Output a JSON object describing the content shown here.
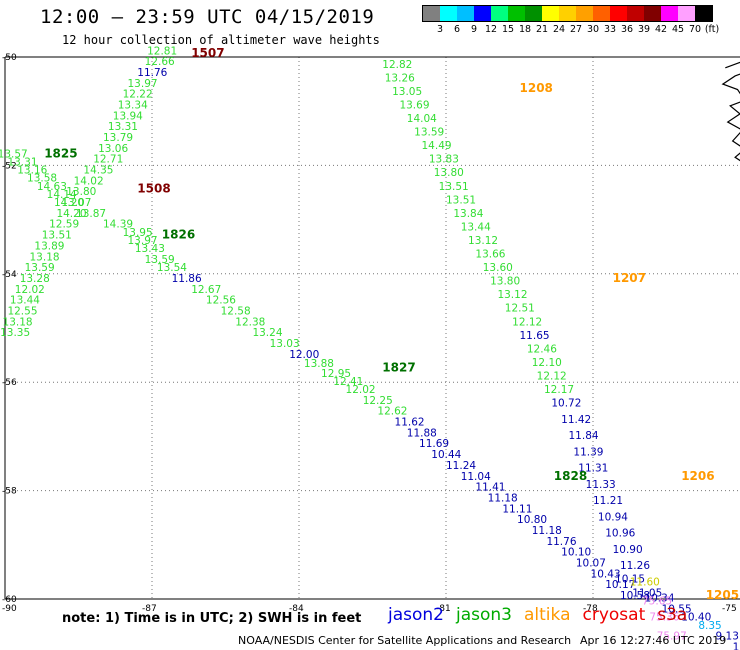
{
  "title": "12:00 – 23:59 UTC 04/15/2019",
  "subtitle": "12 hour collection of altimeter wave heights",
  "legend": {
    "unit": "(ft)",
    "colors": [
      "#808080",
      "#00ffff",
      "#00bfff",
      "#0000ff",
      "#00ff80",
      "#00c000",
      "#009000",
      "#ffff00",
      "#ffd000",
      "#ffa000",
      "#ff6000",
      "#ff0000",
      "#c00000",
      "#800000",
      "#ff00ff",
      "#ffa0ff",
      "#000000"
    ],
    "labels": [
      "3",
      "6",
      "9",
      "12",
      "15",
      "18",
      "21",
      "24",
      "27",
      "30",
      "33",
      "36",
      "39",
      "42",
      "45",
      "70"
    ]
  },
  "axes": {
    "lat_labels": [
      "-50",
      "-52",
      "-54",
      "-56",
      "-58",
      "-60"
    ],
    "lon_labels": [
      "-90",
      "-87",
      "-84",
      "-81",
      "-78",
      "-75"
    ]
  },
  "pass_ids": [
    {
      "id": "1507",
      "color": "#800000",
      "lon": -86.2,
      "lat": -50.0
    },
    {
      "id": "1208",
      "color": "#ff9900",
      "lon": -79.5,
      "lat": -50.65
    },
    {
      "id": "1825",
      "color": "#007000",
      "lon": -89.2,
      "lat": -51.85
    },
    {
      "id": "1508",
      "color": "#800000",
      "lon": -87.3,
      "lat": -52.5
    },
    {
      "id": "1826",
      "color": "#007000",
      "lon": -86.8,
      "lat": -53.35
    },
    {
      "id": "1207",
      "color": "#ff9900",
      "lon": -77.6,
      "lat": -54.15
    },
    {
      "id": "1827",
      "color": "#007000",
      "lon": -82.3,
      "lat": -55.8
    },
    {
      "id": "1828",
      "color": "#007000",
      "lon": -78.8,
      "lat": -57.8
    },
    {
      "id": "1206",
      "color": "#ff9900",
      "lon": -76.2,
      "lat": -57.8
    },
    {
      "id": "1205",
      "color": "#ff9900",
      "lon": -75.7,
      "lat": -60.0
    }
  ],
  "values": [
    {
      "t": "12.81",
      "c": "#33dd33",
      "lon": -87.1,
      "lat": -49.95
    },
    {
      "t": "12.66",
      "c": "#33dd33",
      "lon": -87.15,
      "lat": -50.15
    },
    {
      "t": "11.76",
      "c": "#0000aa",
      "lon": -87.3,
      "lat": -50.35
    },
    {
      "t": "13.97",
      "c": "#33dd33",
      "lon": -87.5,
      "lat": -50.55
    },
    {
      "t": "12.22",
      "c": "#33dd33",
      "lon": -87.6,
      "lat": -50.75
    },
    {
      "t": "13.34",
      "c": "#33dd33",
      "lon": -87.7,
      "lat": -50.95
    },
    {
      "t": "13.94",
      "c": "#33dd33",
      "lon": -87.8,
      "lat": -51.15
    },
    {
      "t": "13.31",
      "c": "#33dd33",
      "lon": -87.9,
      "lat": -51.35
    },
    {
      "t": "13.79",
      "c": "#33dd33",
      "lon": -88.0,
      "lat": -51.55
    },
    {
      "t": "13.06",
      "c": "#33dd33",
      "lon": -88.1,
      "lat": -51.75
    },
    {
      "t": "12.71",
      "c": "#33dd33",
      "lon": -88.2,
      "lat": -51.95
    },
    {
      "t": "14.35",
      "c": "#33dd33",
      "lon": -88.4,
      "lat": -52.15
    },
    {
      "t": "14.02",
      "c": "#33dd33",
      "lon": -88.6,
      "lat": -52.35
    },
    {
      "t": "13.80",
      "c": "#33dd33",
      "lon": -88.75,
      "lat": -52.55
    },
    {
      "t": "13.07",
      "c": "#33dd33",
      "lon": -88.85,
      "lat": -52.75
    },
    {
      "t": "14.20",
      "c": "#33dd33",
      "lon": -88.95,
      "lat": -52.95
    },
    {
      "t": "12.59",
      "c": "#33dd33",
      "lon": -89.1,
      "lat": -53.15
    },
    {
      "t": "13.51",
      "c": "#33dd33",
      "lon": -89.25,
      "lat": -53.35
    },
    {
      "t": "13.89",
      "c": "#33dd33",
      "lon": -89.4,
      "lat": -53.55
    },
    {
      "t": "13.18",
      "c": "#33dd33",
      "lon": -89.5,
      "lat": -53.75
    },
    {
      "t": "13.59",
      "c": "#33dd33",
      "lon": -89.6,
      "lat": -53.95
    },
    {
      "t": "13.28",
      "c": "#33dd33",
      "lon": -89.7,
      "lat": -54.15
    },
    {
      "t": "12.02",
      "c": "#33dd33",
      "lon": -89.8,
      "lat": -54.35
    },
    {
      "t": "13.44",
      "c": "#33dd33",
      "lon": -89.9,
      "lat": -54.55
    },
    {
      "t": "12.55",
      "c": "#33dd33",
      "lon": -89.95,
      "lat": -54.75
    },
    {
      "t": "13.18",
      "c": "#33dd33",
      "lon": -90.05,
      "lat": -54.95
    },
    {
      "t": "13.35",
      "c": "#33dd33",
      "lon": -90.1,
      "lat": -55.15
    },
    {
      "t": "13.57",
      "c": "#33dd33",
      "lon": -90.15,
      "lat": -51.85
    },
    {
      "t": "13.31",
      "c": "#33dd33",
      "lon": -89.95,
      "lat": -52.0
    },
    {
      "t": "13.16",
      "c": "#33dd33",
      "lon": -89.75,
      "lat": -52.15
    },
    {
      "t": "13.58",
      "c": "#33dd33",
      "lon": -89.55,
      "lat": -52.3
    },
    {
      "t": "14.63",
      "c": "#33dd33",
      "lon": -89.35,
      "lat": -52.45
    },
    {
      "t": "14.14",
      "c": "#33dd33",
      "lon": -89.15,
      "lat": -52.6
    },
    {
      "t": "14.20",
      "c": "#33dd33",
      "lon": -89.0,
      "lat": -52.75
    },
    {
      "t": "13.87",
      "c": "#33dd33",
      "lon": -88.55,
      "lat": -52.95
    },
    {
      "t": "14.39",
      "c": "#33dd33",
      "lon": -88.0,
      "lat": -53.15
    },
    {
      "t": "13.95",
      "c": "#33dd33",
      "lon": -87.6,
      "lat": -53.3
    },
    {
      "t": "13.97",
      "c": "#33dd33",
      "lon": -87.5,
      "lat": -53.45
    },
    {
      "t": "13.43",
      "c": "#33dd33",
      "lon": -87.35,
      "lat": -53.6
    },
    {
      "t": "13.59",
      "c": "#33dd33",
      "lon": -87.15,
      "lat": -53.8
    },
    {
      "t": "13.54",
      "c": "#33dd33",
      "lon": -86.9,
      "lat": -53.95
    },
    {
      "t": "11.86",
      "c": "#0000aa",
      "lon": -86.6,
      "lat": -54.15
    },
    {
      "t": "12.67",
      "c": "#33dd33",
      "lon": -86.2,
      "lat": -54.35
    },
    {
      "t": "12.56",
      "c": "#33dd33",
      "lon": -85.9,
      "lat": -54.55
    },
    {
      "t": "12.58",
      "c": "#33dd33",
      "lon": -85.6,
      "lat": -54.75
    },
    {
      "t": "12.38",
      "c": "#33dd33",
      "lon": -85.3,
      "lat": -54.95
    },
    {
      "t": "13.24",
      "c": "#33dd33",
      "lon": -84.95,
      "lat": -55.15
    },
    {
      "t": "13.03",
      "c": "#33dd33",
      "lon": -84.6,
      "lat": -55.35
    },
    {
      "t": "12.00",
      "c": "#0000aa",
      "lon": -84.2,
      "lat": -55.55
    },
    {
      "t": "13.88",
      "c": "#33dd33",
      "lon": -83.9,
      "lat": -55.72
    },
    {
      "t": "12.95",
      "c": "#33dd33",
      "lon": -83.55,
      "lat": -55.9
    },
    {
      "t": "12.41",
      "c": "#33dd33",
      "lon": -83.3,
      "lat": -56.05
    },
    {
      "t": "12.02",
      "c": "#33dd33",
      "lon": -83.05,
      "lat": -56.2
    },
    {
      "t": "12.25",
      "c": "#33dd33",
      "lon": -82.7,
      "lat": -56.4
    },
    {
      "t": "12.62",
      "c": "#33dd33",
      "lon": -82.4,
      "lat": -56.6
    },
    {
      "t": "11.62",
      "c": "#0000aa",
      "lon": -82.05,
      "lat": -56.8
    },
    {
      "t": "11.88",
      "c": "#0000aa",
      "lon": -81.8,
      "lat": -57.0
    },
    {
      "t": "11.69",
      "c": "#0000aa",
      "lon": -81.55,
      "lat": -57.2
    },
    {
      "t": "10.44",
      "c": "#0000aa",
      "lon": -81.3,
      "lat": -57.4
    },
    {
      "t": "11.24",
      "c": "#0000aa",
      "lon": -81.0,
      "lat": -57.6
    },
    {
      "t": "11.04",
      "c": "#0000aa",
      "lon": -80.7,
      "lat": -57.8
    },
    {
      "t": "11.41",
      "c": "#0000aa",
      "lon": -80.4,
      "lat": -58.0
    },
    {
      "t": "11.18",
      "c": "#0000aa",
      "lon": -80.15,
      "lat": -58.2
    },
    {
      "t": "11.11",
      "c": "#0000aa",
      "lon": -79.85,
      "lat": -58.4
    },
    {
      "t": "10.80",
      "c": "#0000aa",
      "lon": -79.55,
      "lat": -58.6
    },
    {
      "t": "11.18",
      "c": "#0000aa",
      "lon": -79.25,
      "lat": -58.8
    },
    {
      "t": "11.76",
      "c": "#0000aa",
      "lon": -78.95,
      "lat": -59.0
    },
    {
      "t": "10.10",
      "c": "#0000aa",
      "lon": -78.65,
      "lat": -59.2
    },
    {
      "t": "10.07",
      "c": "#0000aa",
      "lon": -78.35,
      "lat": -59.4
    },
    {
      "t": "10.43",
      "c": "#0000aa",
      "lon": -78.05,
      "lat": -59.6
    },
    {
      "t": "10.17",
      "c": "#0000aa",
      "lon": -77.75,
      "lat": -59.8
    },
    {
      "t": "10.58",
      "c": "#0000aa",
      "lon": -77.45,
      "lat": -60.0
    },
    {
      "t": "12.82",
      "c": "#33dd33",
      "lon": -82.3,
      "lat": -50.2
    },
    {
      "t": "13.26",
      "c": "#33dd33",
      "lon": -82.25,
      "lat": -50.45
    },
    {
      "t": "13.05",
      "c": "#33dd33",
      "lon": -82.1,
      "lat": -50.7
    },
    {
      "t": "13.69",
      "c": "#33dd33",
      "lon": -81.95,
      "lat": -50.95
    },
    {
      "t": "14.04",
      "c": "#33dd33",
      "lon": -81.8,
      "lat": -51.2
    },
    {
      "t": "13.59",
      "c": "#33dd33",
      "lon": -81.65,
      "lat": -51.45
    },
    {
      "t": "14.49",
      "c": "#33dd33",
      "lon": -81.5,
      "lat": -51.7
    },
    {
      "t": "13.83",
      "c": "#33dd33",
      "lon": -81.35,
      "lat": -51.95
    },
    {
      "t": "13.80",
      "c": "#33dd33",
      "lon": -81.25,
      "lat": -52.2
    },
    {
      "t": "13.51",
      "c": "#33dd33",
      "lon": -81.15,
      "lat": -52.45
    },
    {
      "t": "13.51",
      "c": "#33dd33",
      "lon": -81.0,
      "lat": -52.7
    },
    {
      "t": "13.84",
      "c": "#33dd33",
      "lon": -80.85,
      "lat": -52.95
    },
    {
      "t": "13.44",
      "c": "#33dd33",
      "lon": -80.7,
      "lat": -53.2
    },
    {
      "t": "13.12",
      "c": "#33dd33",
      "lon": -80.55,
      "lat": -53.45
    },
    {
      "t": "13.66",
      "c": "#33dd33",
      "lon": -80.4,
      "lat": -53.7
    },
    {
      "t": "13.60",
      "c": "#33dd33",
      "lon": -80.25,
      "lat": -53.95
    },
    {
      "t": "13.80",
      "c": "#33dd33",
      "lon": -80.1,
      "lat": -54.2
    },
    {
      "t": "13.12",
      "c": "#33dd33",
      "lon": -79.95,
      "lat": -54.45
    },
    {
      "t": "12.51",
      "c": "#33dd33",
      "lon": -79.8,
      "lat": -54.7
    },
    {
      "t": "12.12",
      "c": "#33dd33",
      "lon": -79.65,
      "lat": -54.95
    },
    {
      "t": "11.65",
      "c": "#0000aa",
      "lon": -79.5,
      "lat": -55.2
    },
    {
      "t": "12.46",
      "c": "#33dd33",
      "lon": -79.35,
      "lat": -55.45
    },
    {
      "t": "12.10",
      "c": "#33dd33",
      "lon": -79.25,
      "lat": -55.7
    },
    {
      "t": "12.12",
      "c": "#33dd33",
      "lon": -79.15,
      "lat": -55.95
    },
    {
      "t": "12.17",
      "c": "#33dd33",
      "lon": -79.0,
      "lat": -56.2
    },
    {
      "t": "10.72",
      "c": "#0000aa",
      "lon": -78.85,
      "lat": -56.45
    },
    {
      "t": "11.42",
      "c": "#0000aa",
      "lon": -78.65,
      "lat": -56.75
    },
    {
      "t": "11.84",
      "c": "#0000aa",
      "lon": -78.5,
      "lat": -57.05
    },
    {
      "t": "11.39",
      "c": "#0000aa",
      "lon": -78.4,
      "lat": -57.35
    },
    {
      "t": "11.31",
      "c": "#0000aa",
      "lon": -78.3,
      "lat": -57.65
    },
    {
      "t": "11.33",
      "c": "#0000aa",
      "lon": -78.15,
      "lat": -57.95
    },
    {
      "t": "11.21",
      "c": "#0000aa",
      "lon": -78.0,
      "lat": -58.25
    },
    {
      "t": "10.94",
      "c": "#0000aa",
      "lon": -77.9,
      "lat": -58.55
    },
    {
      "t": "10.96",
      "c": "#0000aa",
      "lon": -77.75,
      "lat": -58.85
    },
    {
      "t": "10.90",
      "c": "#0000aa",
      "lon": -77.6,
      "lat": -59.15
    },
    {
      "t": "11.26",
      "c": "#0000aa",
      "lon": -77.45,
      "lat": -59.45
    },
    {
      "t": "10.15",
      "c": "#0000aa",
      "lon": -77.55,
      "lat": -59.7
    },
    {
      "t": "11.60",
      "c": "#cccc00",
      "lon": -77.25,
      "lat": -59.75
    },
    {
      "t": "11.05",
      "c": "#0000aa",
      "lon": -77.2,
      "lat": -59.95
    },
    {
      "t": "10.34",
      "c": "#0000aa",
      "lon": -76.95,
      "lat": -60.05
    },
    {
      "t": "75.65",
      "c": "#ee88ee",
      "lon": -77.0,
      "lat": -60.1
    },
    {
      "t": "10.55",
      "c": "#0000aa",
      "lon": -76.6,
      "lat": -60.25
    },
    {
      "t": "75.36",
      "c": "#ee88ee",
      "lon": -76.85,
      "lat": -60.4
    },
    {
      "t": "10.40",
      "c": "#0000aa",
      "lon": -76.2,
      "lat": -60.4
    },
    {
      "t": "8.35",
      "c": "#00aaee",
      "lon": -75.85,
      "lat": -60.55
    },
    {
      "t": "75.97",
      "c": "#ee88ee",
      "lon": -76.7,
      "lat": -60.75
    },
    {
      "t": "9.13",
      "c": "#0000aa",
      "lon": -75.5,
      "lat": -60.75
    },
    {
      "t": "10.14",
      "c": "#0000aa",
      "lon": -75.15,
      "lat": -60.95
    },
    {
      "t": "10.25",
      "c": "#0000aa",
      "lon": -74.8,
      "lat": -61.1
    },
    {
      "t": "63.29",
      "c": "#ee88ee",
      "lon": -76.7,
      "lat": -61.1
    }
  ],
  "note": "note: 1) Time is in UTC; 2) SWH is in feet",
  "satellites": [
    {
      "name": "jason2",
      "color": "#0000dd"
    },
    {
      "name": "jason3",
      "color": "#00aa00"
    },
    {
      "name": "altika",
      "color": "#ff9900"
    },
    {
      "name": "cryosat",
      "color": "#ee0000"
    },
    {
      "name": "s3a",
      "color": "#cc0000"
    }
  ],
  "credit": "NOAA/NESDIS Center for Satellite Applications and Research",
  "timestamp": "Apr 16 12:27:46 UTC 2019"
}
